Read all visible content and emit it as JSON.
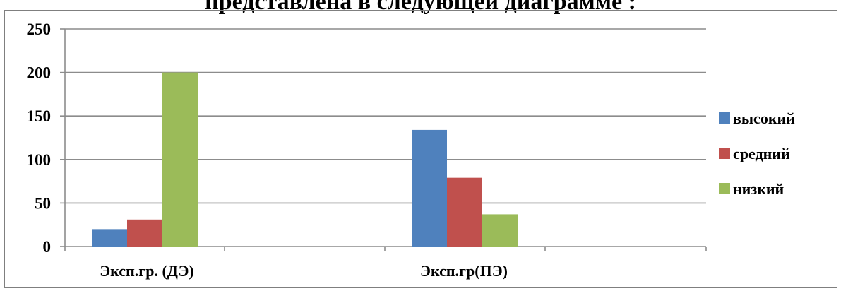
{
  "page": {
    "title": "представлена в следующей диаграмме :"
  },
  "chart_data": {
    "type": "bar",
    "title": "",
    "xlabel": "",
    "ylabel": "",
    "categories": [
      "Эксп.гр. (ДЭ)",
      "Эксп.гр(ПЭ)"
    ],
    "series": [
      {
        "name": "высокий",
        "values": [
          20,
          134
        ],
        "color": "#4f81bd"
      },
      {
        "name": "средний",
        "values": [
          31,
          79
        ],
        "color": "#c0504d"
      },
      {
        "name": "низкий",
        "values": [
          200,
          37
        ],
        "color": "#9bbb59"
      }
    ],
    "ylim": [
      0,
      250
    ],
    "yticks": [
      0,
      50,
      100,
      150,
      200,
      250
    ],
    "grid": true,
    "legend": "right"
  }
}
